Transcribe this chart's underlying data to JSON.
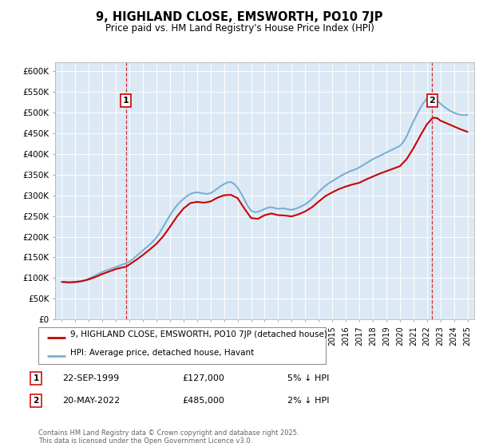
{
  "title": "9, HIGHLAND CLOSE, EMSWORTH, PO10 7JP",
  "subtitle": "Price paid vs. HM Land Registry's House Price Index (HPI)",
  "ylabel_ticks": [
    "£0",
    "£50K",
    "£100K",
    "£150K",
    "£200K",
    "£250K",
    "£300K",
    "£350K",
    "£400K",
    "£450K",
    "£500K",
    "£550K",
    "£600K"
  ],
  "ylim": [
    0,
    620000
  ],
  "xlim_start": 1994.5,
  "xlim_end": 2025.5,
  "background_color": "#ffffff",
  "plot_bg_color": "#dce9f5",
  "red_line_color": "#cc0000",
  "blue_line_color": "#7ab0d4",
  "transaction1_x": 1999.73,
  "transaction1_price": 127000,
  "transaction2_x": 2022.38,
  "transaction2_price": 485000,
  "legend_line1": "9, HIGHLAND CLOSE, EMSWORTH, PO10 7JP (detached house)",
  "legend_line2": "HPI: Average price, detached house, Havant",
  "footer": "Contains HM Land Registry data © Crown copyright and database right 2025.\nThis data is licensed under the Open Government Licence v3.0.",
  "hpi_years": [
    1995.0,
    1995.25,
    1995.5,
    1995.75,
    1996.0,
    1996.25,
    1996.5,
    1996.75,
    1997.0,
    1997.25,
    1997.5,
    1997.75,
    1998.0,
    1998.25,
    1998.5,
    1998.75,
    1999.0,
    1999.25,
    1999.5,
    1999.75,
    2000.0,
    2000.25,
    2000.5,
    2000.75,
    2001.0,
    2001.25,
    2001.5,
    2001.75,
    2002.0,
    2002.25,
    2002.5,
    2002.75,
    2003.0,
    2003.25,
    2003.5,
    2003.75,
    2004.0,
    2004.25,
    2004.5,
    2004.75,
    2005.0,
    2005.25,
    2005.5,
    2005.75,
    2006.0,
    2006.25,
    2006.5,
    2006.75,
    2007.0,
    2007.25,
    2007.5,
    2007.75,
    2008.0,
    2008.25,
    2008.5,
    2008.75,
    2009.0,
    2009.25,
    2009.5,
    2009.75,
    2010.0,
    2010.25,
    2010.5,
    2010.75,
    2011.0,
    2011.25,
    2011.5,
    2011.75,
    2012.0,
    2012.25,
    2012.5,
    2012.75,
    2013.0,
    2013.25,
    2013.5,
    2013.75,
    2014.0,
    2014.25,
    2014.5,
    2014.75,
    2015.0,
    2015.25,
    2015.5,
    2015.75,
    2016.0,
    2016.25,
    2016.5,
    2016.75,
    2017.0,
    2017.25,
    2017.5,
    2017.75,
    2018.0,
    2018.25,
    2018.5,
    2018.75,
    2019.0,
    2019.25,
    2019.5,
    2019.75,
    2020.0,
    2020.25,
    2020.5,
    2020.75,
    2021.0,
    2021.25,
    2021.5,
    2021.75,
    2022.0,
    2022.25,
    2022.5,
    2022.75,
    2023.0,
    2023.25,
    2023.5,
    2023.75,
    2024.0,
    2024.25,
    2024.5,
    2024.75,
    2025.0
  ],
  "hpi_values": [
    91000,
    90000,
    89000,
    89000,
    90000,
    91000,
    93000,
    95000,
    99000,
    103000,
    107000,
    111000,
    115000,
    118000,
    121000,
    124000,
    127000,
    130000,
    133000,
    136000,
    140000,
    146000,
    153000,
    160000,
    167000,
    174000,
    181000,
    189000,
    198000,
    210000,
    224000,
    238000,
    252000,
    264000,
    275000,
    284000,
    291000,
    298000,
    303000,
    306000,
    307000,
    306000,
    304000,
    303000,
    305000,
    310000,
    316000,
    322000,
    327000,
    331000,
    332000,
    327000,
    318000,
    305000,
    290000,
    274000,
    263000,
    259000,
    260000,
    263000,
    267000,
    270000,
    271000,
    269000,
    267000,
    268000,
    268000,
    266000,
    265000,
    267000,
    270000,
    274000,
    278000,
    284000,
    291000,
    299000,
    308000,
    316000,
    323000,
    329000,
    334000,
    339000,
    344000,
    349000,
    353000,
    357000,
    360000,
    363000,
    367000,
    372000,
    377000,
    382000,
    387000,
    391000,
    395000,
    399000,
    403000,
    407000,
    411000,
    415000,
    419000,
    428000,
    442000,
    460000,
    478000,
    494000,
    510000,
    523000,
    533000,
    539000,
    536000,
    529000,
    521000,
    514000,
    508000,
    503000,
    499000,
    496000,
    494000,
    493000,
    494000
  ],
  "red_years": [
    1995.0,
    1995.5,
    1996.0,
    1996.5,
    1997.0,
    1997.5,
    1998.0,
    1998.5,
    1999.0,
    1999.5,
    1999.73,
    2000.0,
    2000.5,
    2001.0,
    2001.5,
    2002.0,
    2002.5,
    2003.0,
    2003.5,
    2004.0,
    2004.5,
    2005.0,
    2005.5,
    2006.0,
    2006.5,
    2007.0,
    2007.5,
    2008.0,
    2008.5,
    2009.0,
    2009.5,
    2010.0,
    2010.5,
    2011.0,
    2011.5,
    2012.0,
    2012.5,
    2013.0,
    2013.5,
    2014.0,
    2014.5,
    2015.0,
    2015.5,
    2016.0,
    2016.5,
    2017.0,
    2017.5,
    2018.0,
    2018.5,
    2019.0,
    2019.5,
    2020.0,
    2020.5,
    2021.0,
    2021.5,
    2022.0,
    2022.38,
    2022.5,
    2022.75,
    2023.0,
    2023.5,
    2024.0,
    2024.5,
    2025.0
  ],
  "red_values": [
    91000,
    90000,
    91000,
    93000,
    97000,
    103000,
    110000,
    116000,
    122000,
    126000,
    127000,
    133000,
    144000,
    156000,
    169000,
    183000,
    201000,
    224000,
    248000,
    268000,
    281000,
    284000,
    282000,
    285000,
    294000,
    300000,
    301000,
    293000,
    268000,
    245000,
    243000,
    252000,
    256000,
    252000,
    251000,
    249000,
    254000,
    261000,
    271000,
    285000,
    298000,
    307000,
    315000,
    321000,
    326000,
    330000,
    338000,
    345000,
    352000,
    358000,
    364000,
    370000,
    387000,
    413000,
    443000,
    471000,
    485000,
    487000,
    486000,
    480000,
    473000,
    466000,
    459000,
    453000
  ]
}
